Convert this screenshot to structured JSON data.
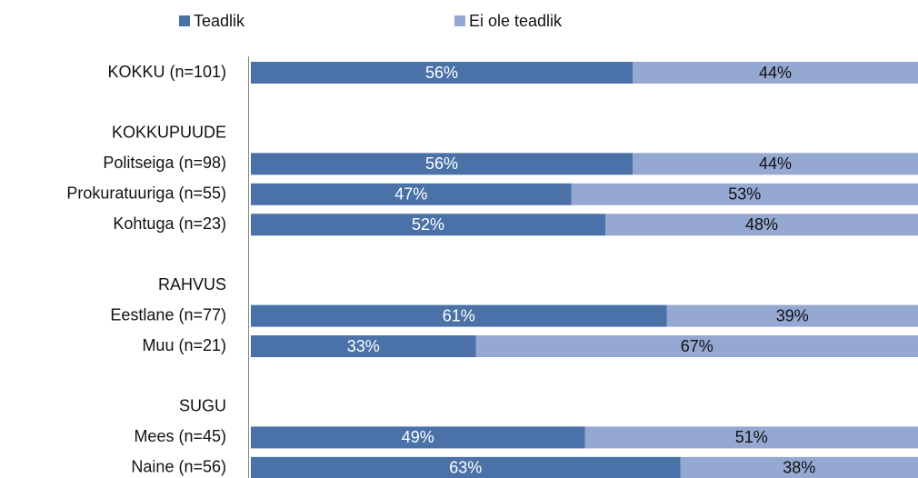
{
  "chart_data": {
    "type": "stacked_bar_horizontal",
    "categories": [
      "KOKKU (n=101)",
      null,
      "KOKKUPUUDE",
      "Politseiga (n=98)",
      "Prokuratuuriga (n=55)",
      "Kohtuga (n=23)",
      null,
      "RAHVUS",
      "Eestlane (n=77)",
      "Muu (n=21)",
      null,
      "SUGU",
      "Mees (n=45)",
      "Naine (n=56)"
    ],
    "series": [
      {
        "name": "Teadlik",
        "color": "#4a72a8",
        "values": [
          56,
          null,
          null,
          56,
          47,
          52,
          null,
          null,
          61,
          33,
          null,
          null,
          49,
          63
        ],
        "value_labels": [
          "56%",
          null,
          null,
          "56%",
          "47%",
          "52%",
          null,
          null,
          "61%",
          "33%",
          null,
          null,
          "49%",
          "63%"
        ]
      },
      {
        "name": "Ei ole teadlik",
        "color": "#95a8d2",
        "values": [
          44,
          null,
          null,
          44,
          53,
          48,
          null,
          null,
          39,
          67,
          null,
          null,
          51,
          38
        ],
        "value_labels": [
          "44%",
          null,
          null,
          "44%",
          "53%",
          "48%",
          null,
          null,
          "39%",
          "67%",
          null,
          null,
          "51%",
          "38%"
        ]
      }
    ],
    "xlim": [
      0,
      100
    ],
    "legend": "top"
  }
}
